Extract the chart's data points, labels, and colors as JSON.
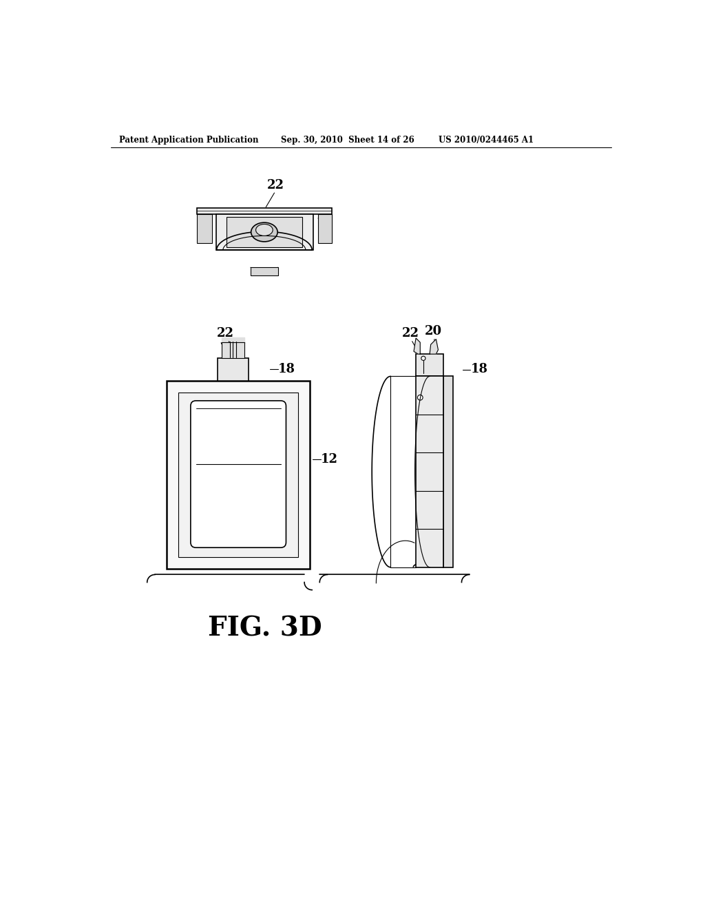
{
  "background_color": "#ffffff",
  "header_left": "Patent Application Publication",
  "header_mid": "Sep. 30, 2010  Sheet 14 of 26",
  "header_right": "US 2010/0244465 A1",
  "figure_label": "FIG. 3D",
  "line_color": "#000000"
}
